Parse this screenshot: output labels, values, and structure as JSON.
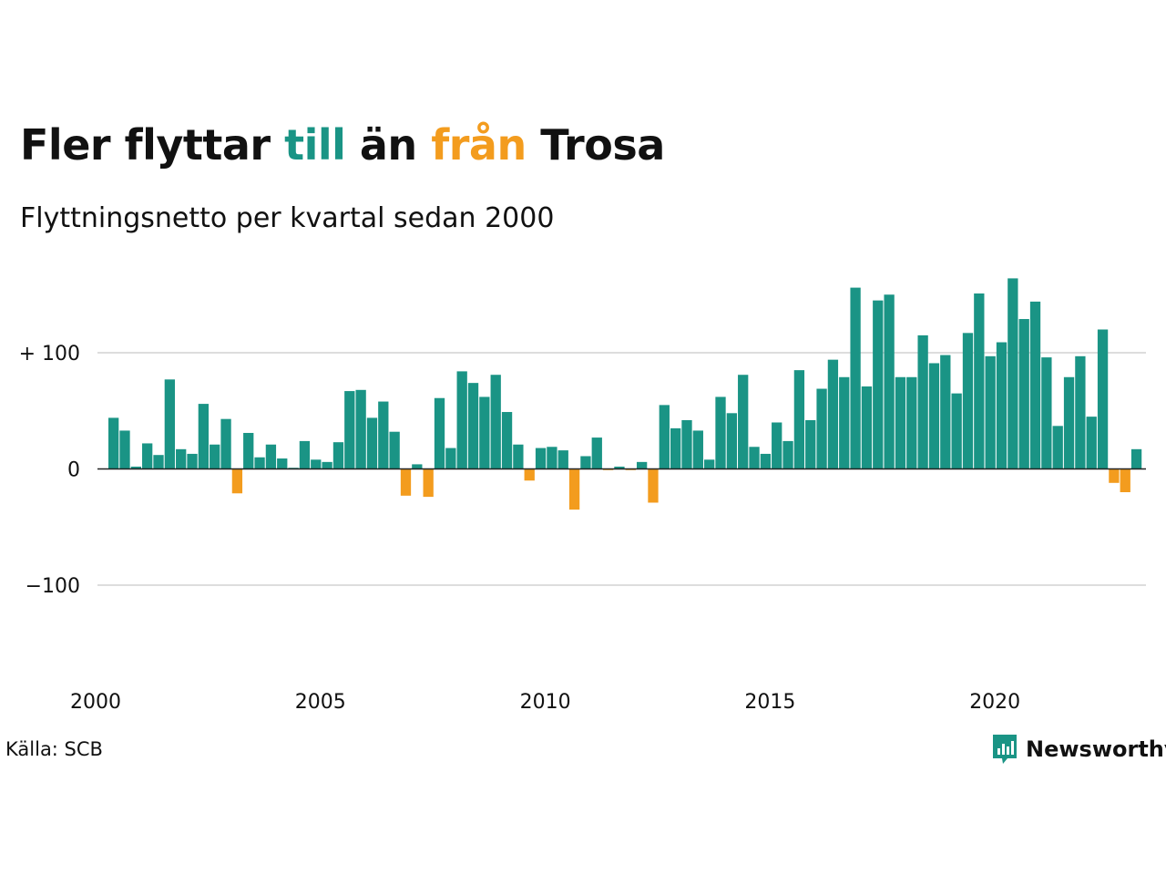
{
  "title": {
    "part1": "Fler flyttar ",
    "part2": "till",
    "part3": " än ",
    "part4": "från",
    "part5": " Trosa"
  },
  "subtitle": "Flyttningsnetto per kvartal sedan 2000",
  "source": "Källa: SCB",
  "brand": {
    "name": "Newsworthy",
    "icon": "newsworthy-logo-icon"
  },
  "colors": {
    "positive": "#1a9485",
    "negative": "#f39c1e",
    "grid": "#dddddd",
    "text": "#111111"
  },
  "chart_data": {
    "type": "bar",
    "title": "Fler flyttar till än från Trosa",
    "subtitle": "Flyttningsnetto per kvartal sedan 2000",
    "x_start": 2000,
    "periods_per_year": 4,
    "values": [
      44,
      33,
      2,
      22,
      12,
      77,
      17,
      13,
      56,
      21,
      43,
      -21,
      31,
      10,
      21,
      9,
      1,
      24,
      8,
      6,
      23,
      67,
      68,
      44,
      58,
      32,
      -23,
      4,
      -24,
      61,
      18,
      84,
      74,
      62,
      81,
      49,
      21,
      -10,
      18,
      19,
      16,
      -35,
      11,
      27,
      -1,
      2,
      -1,
      6,
      -29,
      55,
      35,
      42,
      33,
      8,
      62,
      48,
      81,
      19,
      13,
      40,
      24,
      85,
      42,
      69,
      94,
      79,
      156,
      71,
      145,
      150,
      79,
      79,
      115,
      91,
      98,
      65,
      117,
      151,
      97,
      109,
      164,
      129,
      144,
      96,
      37,
      79,
      97,
      45,
      120,
      -12,
      -20,
      17
    ],
    "xticks": [
      "2000",
      "2005",
      "2010",
      "2015",
      "2020"
    ],
    "yticks": [
      {
        "value": 100,
        "label": "+ 100"
      },
      {
        "value": 0,
        "label": "0"
      },
      {
        "value": -100,
        "label": "−100"
      }
    ],
    "ylim": [
      -175,
      175
    ],
    "grid": true,
    "legend": "none"
  }
}
